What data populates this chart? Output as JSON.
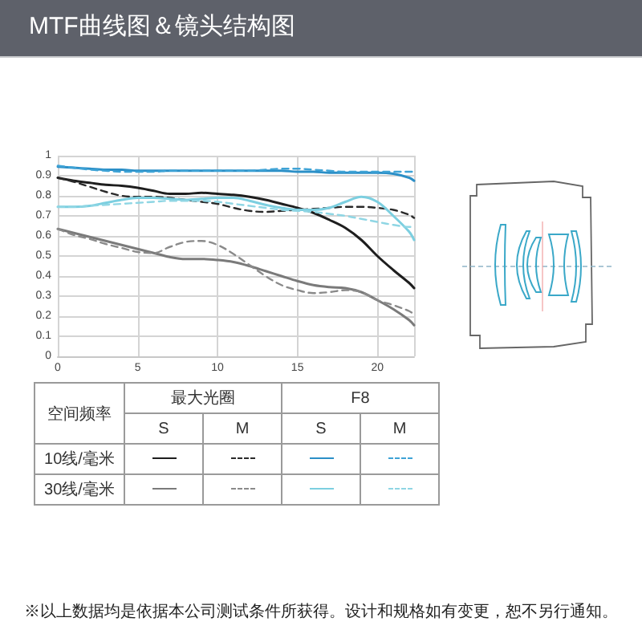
{
  "chart_data": {
    "type": "line",
    "title": "MTF曲线图＆镜头结构图",
    "x": [
      0,
      1,
      2,
      3,
      4,
      5,
      6,
      7,
      8,
      9,
      10,
      11,
      12,
      13,
      14,
      15,
      16,
      17,
      18,
      19,
      20,
      21,
      22,
      22.3
    ],
    "xlim": [
      0,
      22.3
    ],
    "xticks": [
      0,
      5,
      10,
      15,
      20
    ],
    "ylim": [
      0,
      1
    ],
    "yticks": [
      0,
      0.1,
      0.2,
      0.3,
      0.4,
      0.5,
      0.6,
      0.7,
      0.8,
      0.9,
      1
    ],
    "grid": true,
    "marker": "none",
    "series": [
      {
        "color": "#1e1e1e",
        "line_style": "solid",
        "values": [
          0.89,
          0.875,
          0.865,
          0.855,
          0.85,
          0.84,
          0.825,
          0.81,
          0.81,
          0.815,
          0.81,
          0.805,
          0.795,
          0.78,
          0.76,
          0.74,
          0.715,
          0.68,
          0.64,
          0.58,
          0.5,
          0.43,
          0.365,
          0.34
        ]
      },
      {
        "color": "#2a2a2a",
        "line_style": "dashed",
        "values": [
          0.89,
          0.87,
          0.845,
          0.82,
          0.8,
          0.795,
          0.795,
          0.79,
          0.78,
          0.77,
          0.76,
          0.74,
          0.725,
          0.72,
          0.725,
          0.73,
          0.735,
          0.74,
          0.745,
          0.745,
          0.74,
          0.73,
          0.705,
          0.69
        ]
      },
      {
        "color": "#2b8fc7",
        "line_style": "solid",
        "values": [
          0.945,
          0.94,
          0.935,
          0.93,
          0.93,
          0.925,
          0.925,
          0.925,
          0.925,
          0.925,
          0.925,
          0.925,
          0.925,
          0.925,
          0.925,
          0.92,
          0.92,
          0.915,
          0.915,
          0.915,
          0.915,
          0.91,
          0.89,
          0.875
        ]
      },
      {
        "color": "#3ea3d6",
        "line_style": "dashed",
        "values": [
          0.95,
          0.94,
          0.93,
          0.925,
          0.92,
          0.92,
          0.92,
          0.925,
          0.925,
          0.925,
          0.925,
          0.925,
          0.925,
          0.93,
          0.935,
          0.935,
          0.93,
          0.925,
          0.92,
          0.92,
          0.92,
          0.92,
          0.92,
          0.92
        ]
      },
      {
        "color": "#7a7a7a",
        "line_style": "solid",
        "values": [
          0.635,
          0.615,
          0.595,
          0.575,
          0.555,
          0.535,
          0.515,
          0.495,
          0.485,
          0.485,
          0.48,
          0.47,
          0.45,
          0.425,
          0.4,
          0.375,
          0.355,
          0.345,
          0.34,
          0.32,
          0.28,
          0.235,
          0.18,
          0.155
        ]
      },
      {
        "color": "#8a8a8a",
        "line_style": "dashed",
        "values": [
          0.635,
          0.605,
          0.585,
          0.56,
          0.54,
          0.52,
          0.515,
          0.545,
          0.57,
          0.575,
          0.555,
          0.51,
          0.455,
          0.4,
          0.355,
          0.33,
          0.315,
          0.32,
          0.33,
          0.32,
          0.28,
          0.255,
          0.225,
          0.21
        ]
      },
      {
        "color": "#7ccfe0",
        "line_style": "solid",
        "values": [
          0.745,
          0.745,
          0.75,
          0.765,
          0.78,
          0.79,
          0.79,
          0.785,
          0.78,
          0.785,
          0.79,
          0.79,
          0.775,
          0.755,
          0.74,
          0.73,
          0.73,
          0.74,
          0.77,
          0.795,
          0.77,
          0.7,
          0.62,
          0.58
        ]
      },
      {
        "color": "#8fd6e4",
        "line_style": "dashed",
        "values": [
          0.745,
          0.745,
          0.75,
          0.755,
          0.76,
          0.765,
          0.77,
          0.775,
          0.775,
          0.775,
          0.77,
          0.76,
          0.75,
          0.74,
          0.73,
          0.725,
          0.72,
          0.71,
          0.7,
          0.685,
          0.67,
          0.655,
          0.645,
          0.645
        ]
      }
    ],
    "annotations": [
      "空间频率",
      "最大光圈",
      "F8",
      "S",
      "M",
      "S",
      "M",
      "10线/毫米",
      "30线/毫米",
      "※以上数据均是依据本公司测试条件所获得。设计和规格如有变更，恕不另行通知。"
    ]
  }
}
